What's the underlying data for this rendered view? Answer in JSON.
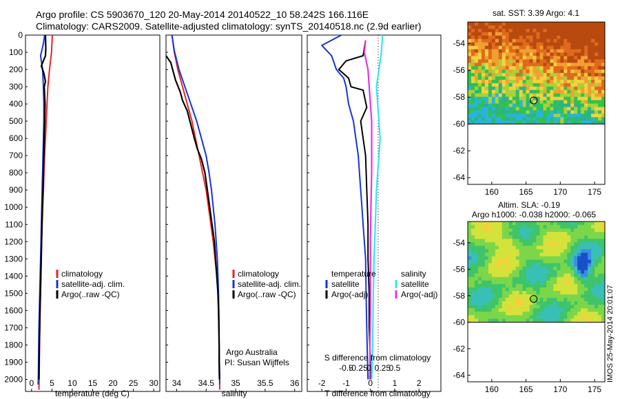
{
  "header": {
    "line1": "Argo profile: CS 5903670_120 20-May-2014 20140522_10 58.242S 166.116E",
    "line2": "Climatology: CARS2009. Satellite-adjusted climatology: synTS_20140518.nc (2.9d earlier)"
  },
  "colors": {
    "climatology": "#e8231f",
    "satellite": "#1433d6",
    "argo": "#000000",
    "sal_satellite": "#33e6f0",
    "sal_argo": "#e633e6"
  },
  "chart_data": [
    {
      "type": "line",
      "id": "temperature_profile",
      "xlabel": "temperature (deg C)",
      "ylabel": "",
      "xlim": [
        -1.5,
        31.5
      ],
      "ylim": [
        2070,
        0
      ],
      "xticks": [
        0,
        5,
        10,
        15,
        20,
        25,
        30
      ],
      "yticks": [
        0,
        100,
        200,
        300,
        400,
        500,
        600,
        700,
        800,
        900,
        1000,
        1100,
        1200,
        1300,
        1400,
        1500,
        1600,
        1700,
        1800,
        1900,
        2000
      ],
      "series": [
        {
          "name": "climatology",
          "color": "#e8231f",
          "points": [
            [
              5.1,
              0
            ],
            [
              4.9,
              100
            ],
            [
              4.4,
              200
            ],
            [
              4.0,
              300
            ],
            [
              3.8,
              400
            ],
            [
              3.6,
              500
            ],
            [
              3.4,
              600
            ],
            [
              3.2,
              700
            ],
            [
              3.05,
              800
            ],
            [
              2.9,
              900
            ],
            [
              2.75,
              1000
            ],
            [
              2.6,
              1100
            ],
            [
              2.5,
              1200
            ],
            [
              2.4,
              1300
            ],
            [
              2.3,
              1400
            ],
            [
              2.2,
              1500
            ],
            [
              2.1,
              1600
            ],
            [
              2.0,
              1700
            ],
            [
              1.95,
              1800
            ],
            [
              1.9,
              1900
            ],
            [
              1.85,
              2000
            ],
            [
              1.8,
              2060
            ]
          ]
        },
        {
          "name": "satellite-adj. clim.",
          "color": "#1433d6",
          "points": [
            [
              3.2,
              0
            ],
            [
              2.9,
              50
            ],
            [
              2.2,
              120
            ],
            [
              2.7,
              200
            ],
            [
              2.9,
              300
            ],
            [
              3.0,
              400
            ],
            [
              3.0,
              500
            ],
            [
              2.9,
              600
            ],
            [
              2.8,
              700
            ],
            [
              2.7,
              800
            ],
            [
              2.6,
              900
            ],
            [
              2.5,
              1000
            ],
            [
              2.4,
              1100
            ],
            [
              2.3,
              1200
            ],
            [
              2.2,
              1300
            ],
            [
              2.1,
              1400
            ],
            [
              2.0,
              1500
            ],
            [
              1.9,
              1600
            ],
            [
              1.8,
              1700
            ],
            [
              1.75,
              1800
            ],
            [
              1.7,
              1900
            ],
            [
              1.65,
              2000
            ],
            [
              1.6,
              2030
            ]
          ]
        },
        {
          "name": "Argo(..raw -QC)",
          "color": "#000000",
          "points": [
            [
              3.4,
              0
            ],
            [
              3.5,
              80
            ],
            [
              3.4,
              120
            ],
            [
              2.4,
              180
            ],
            [
              3.0,
              220
            ],
            [
              3.4,
              270
            ],
            [
              3.1,
              300
            ],
            [
              3.3,
              400
            ],
            [
              3.2,
              500
            ],
            [
              3.1,
              600
            ],
            [
              3.0,
              700
            ],
            [
              2.9,
              800
            ],
            [
              2.8,
              900
            ],
            [
              2.65,
              1000
            ],
            [
              2.55,
              1100
            ],
            [
              2.45,
              1200
            ],
            [
              2.35,
              1300
            ],
            [
              2.25,
              1400
            ],
            [
              2.15,
              1500
            ],
            [
              2.05,
              1600
            ],
            [
              2.0,
              1700
            ],
            [
              1.9,
              1800
            ],
            [
              1.85,
              1900
            ],
            [
              1.8,
              2000
            ]
          ]
        }
      ],
      "legend": [
        "climatology",
        "satellite-adj. clim.",
        "Argo(..raw -QC)"
      ]
    },
    {
      "type": "line",
      "id": "salinity_profile",
      "xlabel": "salinity",
      "ylabel": "",
      "xlim": [
        33.82,
        36.12
      ],
      "ylim": [
        2070,
        0
      ],
      "xticks": [
        34,
        34.5,
        35,
        35.5,
        36
      ],
      "series": [
        {
          "name": "climatology",
          "color": "#e8231f",
          "points": [
            [
              33.92,
              0
            ],
            [
              33.96,
              100
            ],
            [
              34.02,
              200
            ],
            [
              34.1,
              300
            ],
            [
              34.18,
              400
            ],
            [
              34.26,
              500
            ],
            [
              34.32,
              600
            ],
            [
              34.38,
              700
            ],
            [
              34.44,
              800
            ],
            [
              34.5,
              900
            ],
            [
              34.54,
              1000
            ],
            [
              34.58,
              1100
            ],
            [
              34.62,
              1200
            ],
            [
              34.65,
              1300
            ],
            [
              34.68,
              1400
            ],
            [
              34.7,
              1500
            ],
            [
              34.71,
              1600
            ],
            [
              34.715,
              1700
            ],
            [
              34.72,
              1800
            ],
            [
              34.725,
              1900
            ],
            [
              34.73,
              2000
            ],
            [
              34.73,
              2060
            ]
          ]
        },
        {
          "name": "satellite-adj. clim.",
          "color": "#1433d6",
          "points": [
            [
              33.92,
              0
            ],
            [
              33.96,
              90
            ],
            [
              34.04,
              200
            ],
            [
              34.14,
              300
            ],
            [
              34.24,
              400
            ],
            [
              34.34,
              500
            ],
            [
              34.42,
              600
            ],
            [
              34.5,
              700
            ],
            [
              34.55,
              800
            ],
            [
              34.59,
              900
            ],
            [
              34.62,
              1000
            ],
            [
              34.65,
              1100
            ],
            [
              34.67,
              1200
            ],
            [
              34.69,
              1300
            ],
            [
              34.7,
              1400
            ],
            [
              34.71,
              1500
            ],
            [
              34.715,
              1600
            ],
            [
              34.72,
              1700
            ],
            [
              34.72,
              1800
            ],
            [
              34.725,
              1900
            ],
            [
              34.73,
              2000
            ],
            [
              34.73,
              2030
            ]
          ]
        },
        {
          "name": "Argo(..raw -QC)",
          "color": "#000000",
          "points": [
            [
              33.82,
              120
            ],
            [
              33.9,
              160
            ],
            [
              33.98,
              260
            ],
            [
              34.06,
              330
            ],
            [
              34.1,
              380
            ],
            [
              34.18,
              440
            ],
            [
              34.24,
              520
            ],
            [
              34.3,
              600
            ],
            [
              34.35,
              660
            ],
            [
              34.42,
              720
            ],
            [
              34.48,
              800
            ],
            [
              34.52,
              900
            ],
            [
              34.56,
              1000
            ],
            [
              34.6,
              1100
            ],
            [
              34.64,
              1200
            ],
            [
              34.66,
              1300
            ],
            [
              34.68,
              1400
            ],
            [
              34.7,
              1500
            ],
            [
              34.71,
              1600
            ],
            [
              34.715,
              1700
            ],
            [
              34.72,
              1800
            ],
            [
              34.72,
              1900
            ],
            [
              34.725,
              2000
            ]
          ]
        }
      ],
      "legend": [
        "climatology",
        "satellite-adj. clim.",
        "Argo(..raw -QC)"
      ],
      "annotations": [
        "Argo Australia",
        "PI: Susan Wijffels"
      ]
    },
    {
      "type": "line",
      "id": "difference_profile",
      "xlabel": "T difference from climatology",
      "xlabel_top": "S difference from climatology",
      "ylabel": "",
      "xlim": [
        -2.6,
        2.9
      ],
      "ylim": [
        2070,
        0
      ],
      "xticks": [
        -2,
        -1,
        0,
        1,
        2
      ],
      "xticks_salinity": [
        "-0.5",
        "-0.25",
        "0",
        "0.25",
        "0.5"
      ],
      "series": [
        {
          "name": "temperature satellite",
          "color": "#1433d6",
          "points": [
            [
              -1.2,
              0
            ],
            [
              -2.0,
              60
            ],
            [
              -1.6,
              120
            ],
            [
              -1.4,
              200
            ],
            [
              -1.1,
              250
            ],
            [
              -1.0,
              300
            ],
            [
              -0.9,
              400
            ],
            [
              -0.7,
              500
            ],
            [
              -0.6,
              600
            ],
            [
              -0.5,
              700
            ],
            [
              -0.45,
              800
            ],
            [
              -0.4,
              900
            ],
            [
              -0.35,
              1000
            ],
            [
              -0.3,
              1100
            ],
            [
              -0.25,
              1200
            ],
            [
              -0.2,
              1300
            ],
            [
              -0.18,
              1500
            ],
            [
              -0.15,
              1700
            ],
            [
              -0.12,
              1900
            ],
            [
              -0.1,
              2000
            ]
          ]
        },
        {
          "name": "temperature Argo(-adj)",
          "color": "#000000",
          "points": [
            [
              -0.2,
              30
            ],
            [
              -0.3,
              120
            ],
            [
              -1.0,
              150
            ],
            [
              -1.3,
              200
            ],
            [
              -0.9,
              250
            ],
            [
              -0.8,
              300
            ],
            [
              -0.3,
              320
            ],
            [
              -0.15,
              420
            ],
            [
              -0.4,
              500
            ],
            [
              -0.3,
              600
            ],
            [
              -0.2,
              700
            ],
            [
              -0.15,
              900
            ],
            [
              -0.1,
              1100
            ],
            [
              -0.1,
              1300
            ],
            [
              -0.05,
              1500
            ],
            [
              -0.05,
              1700
            ],
            [
              0,
              1900
            ],
            [
              0,
              2000
            ]
          ]
        },
        {
          "name": "salinity satellite",
          "color": "#33e6f0",
          "points": [
            [
              0.5,
              0
            ],
            [
              0.45,
              100
            ],
            [
              0.35,
              200
            ],
            [
              0.25,
              300
            ],
            [
              0.3,
              400
            ],
            [
              0.35,
              500
            ],
            [
              0.4,
              600
            ],
            [
              0.35,
              700
            ],
            [
              0.3,
              800
            ],
            [
              0.25,
              900
            ],
            [
              0.2,
              1100
            ],
            [
              0.15,
              1300
            ],
            [
              0.12,
              1500
            ],
            [
              0.1,
              1700
            ],
            [
              0.08,
              1900
            ],
            [
              0.05,
              2000
            ]
          ]
        },
        {
          "name": "salinity Argo(-adj)",
          "color": "#e633e6",
          "points": [
            [
              -0.2,
              30
            ],
            [
              -0.25,
              100
            ],
            [
              -0.1,
              200
            ],
            [
              -0.05,
              300
            ],
            [
              0,
              400
            ],
            [
              0.05,
              500
            ],
            [
              0.05,
              600
            ],
            [
              0.05,
              700
            ],
            [
              0.05,
              800
            ],
            [
              0.02,
              1000
            ],
            [
              0,
              1200
            ],
            [
              0,
              1400
            ],
            [
              0,
              1600
            ],
            [
              -0.02,
              1800
            ],
            [
              -0.03,
              2000
            ]
          ]
        }
      ],
      "legend_headers": [
        "temperature",
        "salinity"
      ],
      "legend": [
        "satellite",
        "Argo(-adj)",
        "satellite",
        "Argo(-adj)"
      ]
    },
    {
      "type": "heatmap",
      "id": "sst_map",
      "title": "sat. SST: 3.39 Argo: 4.1",
      "xticks": [
        160,
        165,
        170,
        175
      ],
      "yticks": [
        -54,
        -56,
        -58,
        -60,
        -62,
        -64
      ],
      "xlim": [
        156.5,
        176.5
      ],
      "ylim": [
        -64.5,
        -52.4
      ],
      "marker": {
        "lon": 166.116,
        "lat": -58.242
      }
    },
    {
      "type": "heatmap",
      "id": "sla_map",
      "title": "Altim. SLA: -0.19",
      "subtitle": "Argo h1000: -0.038 h2000: -0.065",
      "xticks": [
        160,
        165,
        170,
        175
      ],
      "yticks": [
        -54,
        -56,
        -58,
        -60,
        -62,
        -64
      ],
      "xlim": [
        156.5,
        176.5
      ],
      "ylim": [
        -64.5,
        -52.4
      ],
      "marker": {
        "lon": 166.116,
        "lat": -58.242
      }
    }
  ],
  "side_label": "IMOS 25-May-2014 20:01:07"
}
